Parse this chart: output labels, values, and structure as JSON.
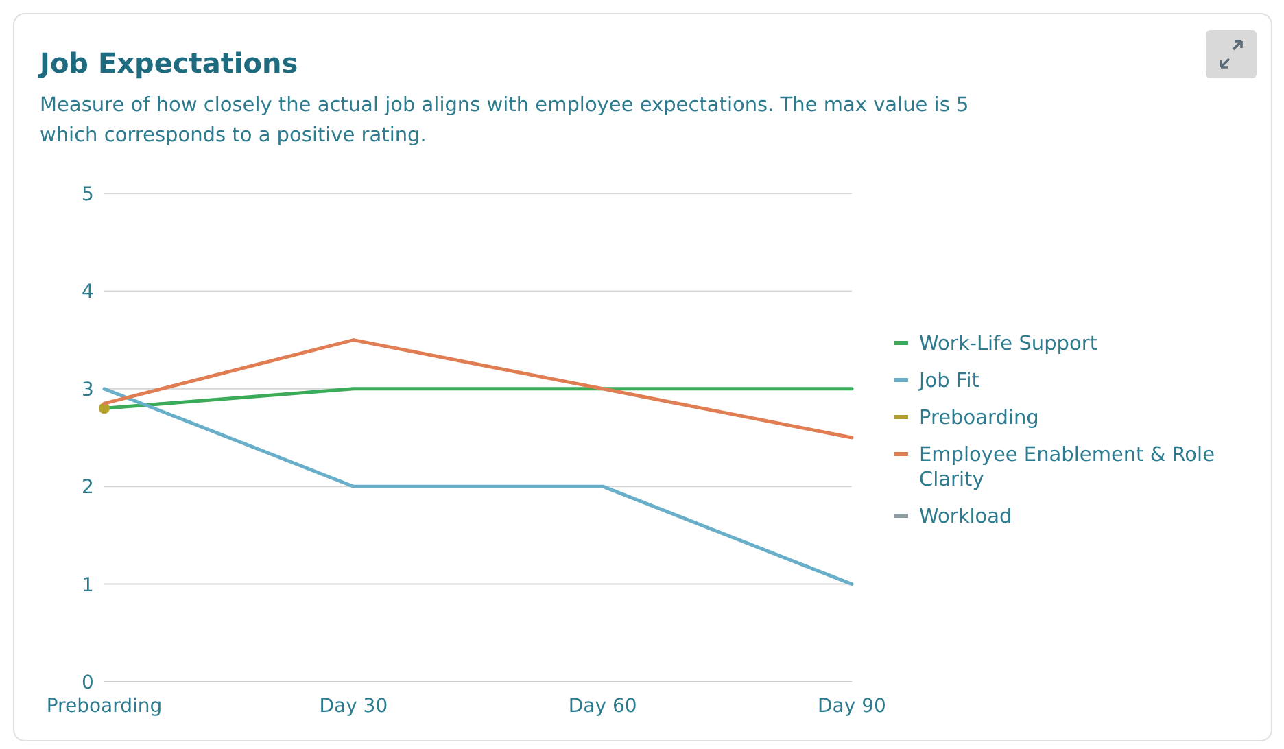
{
  "chart_data": {
    "type": "line",
    "title": "Job Expectations",
    "subtitle": "Measure of how closely the actual job aligns with employee expectations. The max value is 5 which corresponds to a positive rating.",
    "categories": [
      "Preboarding",
      "Day 30",
      "Day 60",
      "Day 90"
    ],
    "series": [
      {
        "name": "Work-Life Support",
        "color": "#3aab58",
        "values": [
          2.8,
          3,
          3,
          3
        ]
      },
      {
        "name": "Job Fit",
        "color": "#6aafc9",
        "values": [
          3,
          2,
          2,
          1
        ]
      },
      {
        "name": "Preboarding",
        "color": "#b4a22c",
        "values": [
          2.8,
          null,
          null,
          null
        ],
        "marker": "circle"
      },
      {
        "name": "Employee Enablement & Role Clarity",
        "color": "#e07d52",
        "values": [
          2.85,
          3.5,
          3,
          2.5
        ]
      },
      {
        "name": "Workload",
        "color": "#8f9ca2",
        "values": [
          null,
          null,
          null,
          null
        ]
      }
    ],
    "ylim": [
      0,
      5
    ],
    "yticks": [
      0,
      1,
      2,
      3,
      4,
      5
    ],
    "grid": "y",
    "legend": "right",
    "marker": "none",
    "line_style": "solid"
  }
}
